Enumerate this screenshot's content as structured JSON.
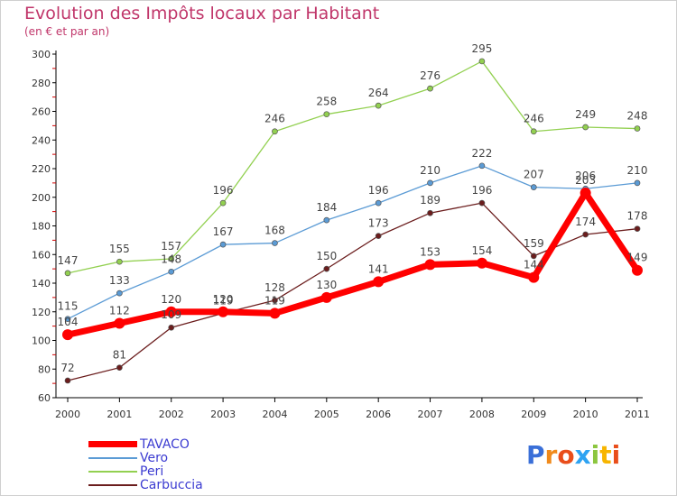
{
  "header": {
    "title": "Evolution des Impôts locaux par Habitant",
    "subtitle": "(en € et par an)"
  },
  "logo": {
    "text": "Proxiti"
  },
  "chart_data": {
    "type": "line",
    "title": "Evolution des Impôts locaux par Habitant",
    "subtitle": "(en € et par an)",
    "xlabel": "",
    "ylabel": "",
    "ylim": [
      60,
      300
    ],
    "yticks": [
      60,
      80,
      100,
      120,
      140,
      160,
      180,
      200,
      220,
      240,
      260,
      280,
      300
    ],
    "categories": [
      "2000",
      "2001",
      "2002",
      "2003",
      "2004",
      "2005",
      "2006",
      "2007",
      "2008",
      "2009",
      "2010",
      "2011"
    ],
    "series": [
      {
        "name": "TAVACO",
        "color": "#ff0000",
        "labels": [
          "104",
          "112",
          "120",
          "120",
          "119",
          "130",
          "141",
          "153",
          "154",
          "144",
          "203",
          "149"
        ],
        "values": [
          104,
          112,
          120,
          120,
          119,
          130,
          141,
          153,
          154,
          144,
          203,
          149
        ]
      },
      {
        "name": "Vero",
        "color": "#5b9bd5",
        "labels": [
          "115",
          "133",
          "148",
          "167",
          "168",
          "184",
          "196",
          "210",
          "222",
          "207",
          "206",
          "210"
        ],
        "values": [
          115,
          133,
          148,
          167,
          168,
          184,
          196,
          210,
          222,
          207,
          206,
          210
        ]
      },
      {
        "name": "Peri",
        "color": "#92d050",
        "labels": [
          "147",
          "155",
          "157",
          "196",
          "246",
          "258",
          "264",
          "276",
          "295",
          "246",
          "249",
          "248"
        ],
        "values": [
          147,
          155,
          157,
          196,
          246,
          258,
          264,
          276,
          295,
          246,
          249,
          248
        ]
      },
      {
        "name": "Carbuccia",
        "color": "#6b1d1d",
        "labels": [
          "72",
          "81",
          "109",
          "119",
          "128",
          "150",
          "173",
          "189",
          "196",
          "159",
          "174",
          "178"
        ],
        "values": [
          72,
          81,
          109,
          119,
          128,
          150,
          173,
          189,
          196,
          159,
          174,
          178
        ]
      }
    ],
    "legend": "bottom-left",
    "grid": false
  }
}
